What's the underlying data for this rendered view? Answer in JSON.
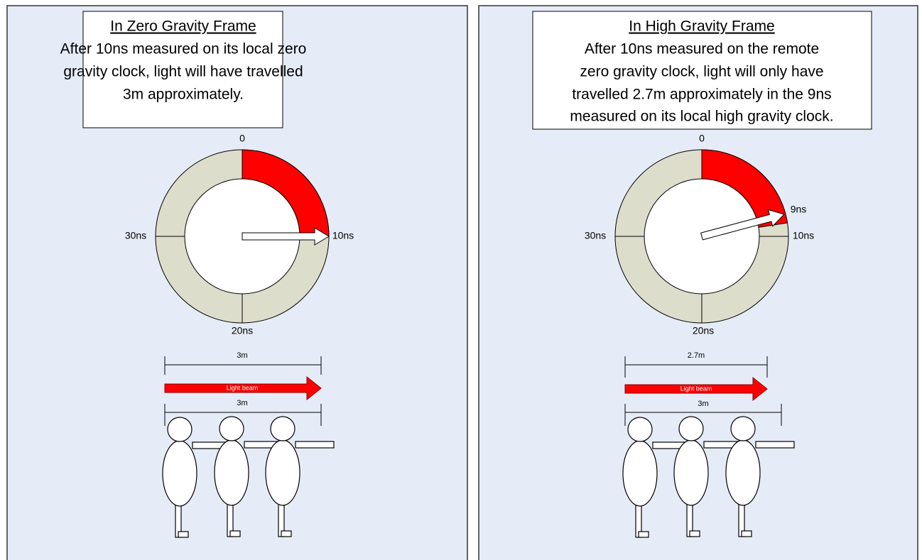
{
  "panels": [
    {
      "title": "In Zero Gravity Frame",
      "description": [
        "After 10ns measured on its local zero",
        "gravity clock, light will have travelled",
        "3m approximately."
      ],
      "clock_labels": [
        "0",
        "10ns",
        "20ns",
        "30ns"
      ],
      "distance_top": "3m",
      "beam_label": "Light beam",
      "distance_bottom": "3m"
    },
    {
      "title": "In High Gravity Frame",
      "description": [
        "After 10ns measured on the remote",
        "zero gravity clock, light will only have",
        "travelled 2.7m approximately in the 9ns",
        "measured on its local high gravity clock."
      ],
      "clock_labels": [
        "0",
        "9ns",
        "10ns",
        "20ns",
        "30ns"
      ],
      "distance_top": "2.7m",
      "beam_label": "Light beam",
      "distance_bottom": "3m"
    }
  ]
}
